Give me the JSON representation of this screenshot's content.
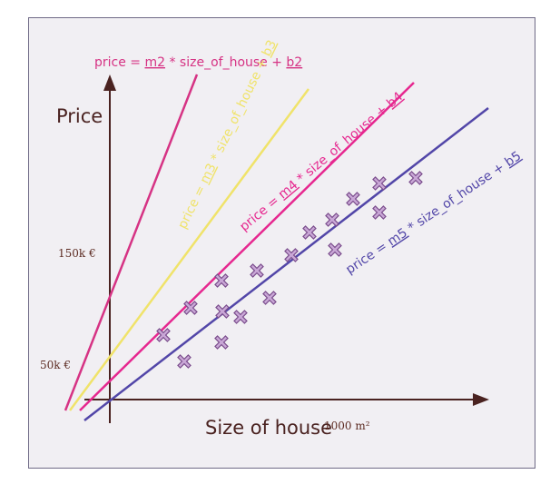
{
  "diagram": {
    "y_axis_title": "Price",
    "x_axis_title": "Size of house",
    "x_unit_label": "1000 m²",
    "y_ticks": [
      {
        "label": "150k €"
      },
      {
        "label": "50k €"
      }
    ],
    "lines": [
      {
        "id": "m2",
        "color": "#d63384",
        "eq_prefix": "price = ",
        "m": "m2",
        "mid": " * size_of_house + ",
        "b": "b2"
      },
      {
        "id": "m3",
        "color": "#f0e36a",
        "eq_prefix": "price = ",
        "m": "m3",
        "mid": " * size_of_house + ",
        "b": "b3"
      },
      {
        "id": "m4",
        "color": "#e6278f",
        "eq_prefix": "price = ",
        "m": "m4",
        "mid": " * size_of_house + ",
        "b": "b4"
      },
      {
        "id": "m5",
        "color": "#5246a8",
        "eq_prefix": "price = ",
        "m": "m5",
        "mid": " * size_of_house + ",
        "b": "b5"
      }
    ],
    "colors": {
      "axis": "#4a2220",
      "marker": "#c9a7d6",
      "marker_stroke": "#7a4c8c"
    }
  }
}
